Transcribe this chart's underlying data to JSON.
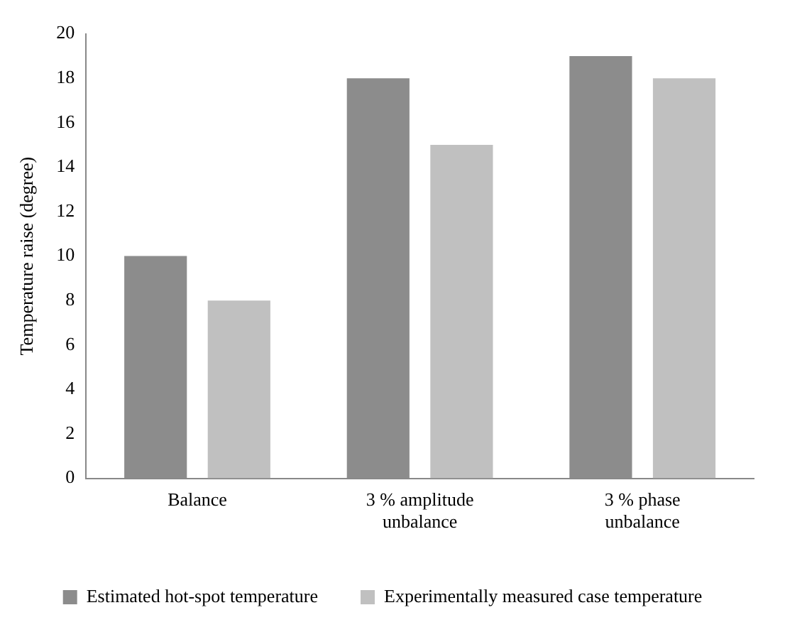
{
  "chart_data": {
    "type": "bar",
    "ylabel": "Temperature raise (degree)",
    "categories": [
      "Balance",
      "3 % amplitude unbalance",
      "3 % phase unbalance"
    ],
    "series": [
      {
        "name": "Estimated hot-spot temperature",
        "color": "#8c8c8c",
        "values": [
          10,
          18,
          19
        ]
      },
      {
        "name": "Experimentally measured case temperature",
        "color": "#c0c0c0",
        "values": [
          8,
          15,
          18
        ]
      }
    ],
    "ylim": [
      0,
      20
    ],
    "yticks": [
      0,
      2,
      4,
      6,
      8,
      10,
      12,
      14,
      16,
      18,
      20
    ],
    "grid": false,
    "legend": "bottom"
  }
}
